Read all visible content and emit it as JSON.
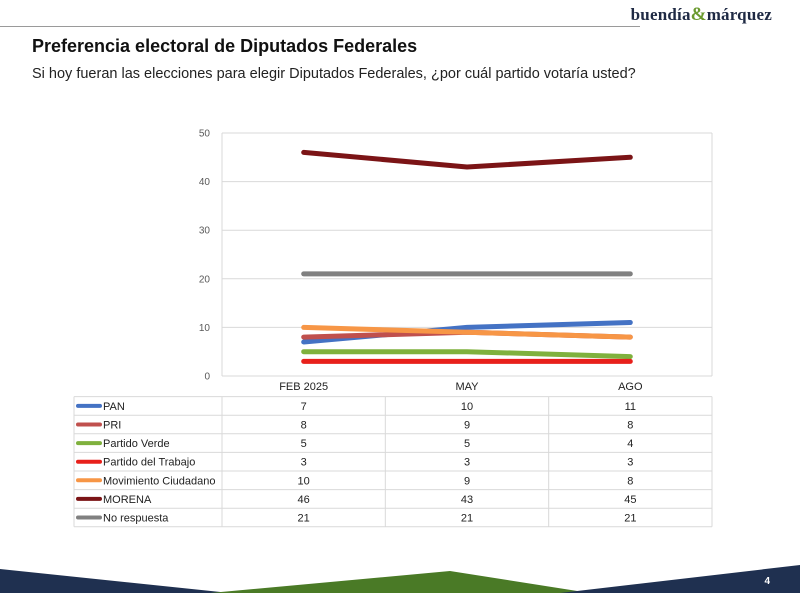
{
  "header": {
    "brand_left": "buendía",
    "brand_amp": "&",
    "brand_right": "márquez",
    "title": "Preferencia electoral de Diputados Federales",
    "subtitle": "Si hoy fueran las elecciones para elegir Diputados Federales, ¿por cuál partido votaría usted?"
  },
  "footer": {
    "page_number": "4",
    "bar_color": "#1f3050",
    "accent_color": "#4a7a26"
  },
  "chart_data": {
    "type": "line",
    "categories": [
      "FEB 2025",
      "MAY",
      "AGO"
    ],
    "ylim": [
      0,
      50
    ],
    "yticks": [
      0,
      10,
      20,
      30,
      40,
      50
    ],
    "grid": true,
    "legend_placement": "data-table-below",
    "series": [
      {
        "name": "PAN",
        "color": "#4472c4",
        "values": [
          7,
          10,
          11
        ]
      },
      {
        "name": "PRI",
        "color": "#c0504d",
        "values": [
          8,
          9,
          8
        ]
      },
      {
        "name": "Partido Verde",
        "color": "#7fb13d",
        "values": [
          5,
          5,
          4
        ]
      },
      {
        "name": "Partido del Trabajo",
        "color": "#e8201b",
        "values": [
          3,
          3,
          3
        ]
      },
      {
        "name": "Movimiento Ciudadano",
        "color": "#f79646",
        "values": [
          10,
          9,
          8
        ]
      },
      {
        "name": "MORENA",
        "color": "#7b1416",
        "values": [
          46,
          43,
          45
        ]
      },
      {
        "name": "No respuesta",
        "color": "#808080",
        "values": [
          21,
          21,
          21
        ]
      }
    ]
  }
}
